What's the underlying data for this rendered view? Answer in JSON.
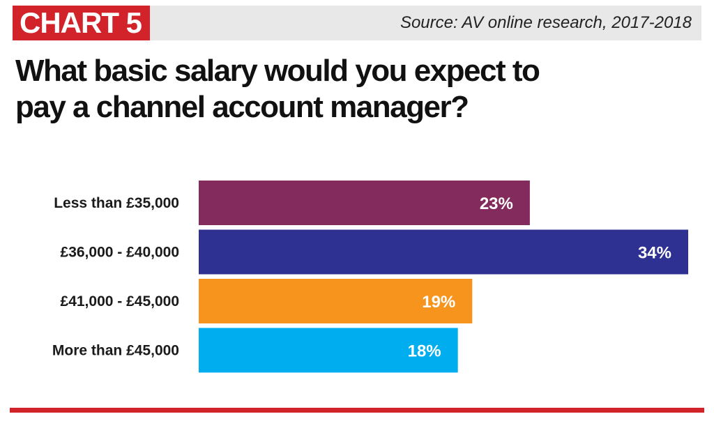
{
  "header": {
    "tag": "CHART 5",
    "source": "Source: AV online research, 2017-2018"
  },
  "title": "What basic salary would you expect to pay a channel account manager?",
  "colors": {
    "brand_red": "#d2232a",
    "header_band": "#e8e8e8"
  },
  "chart_data": {
    "type": "bar",
    "orientation": "horizontal",
    "title": "What basic salary would you expect to pay a channel account manager?",
    "categories": [
      "Less than £35,000",
      "£36,000 - £40,000",
      "£41,000 - £45,000",
      "More than £45,000"
    ],
    "values": [
      23,
      34,
      19,
      18
    ],
    "value_labels": [
      "23%",
      "34%",
      "19%",
      "18%"
    ],
    "bar_colors": [
      "#832b5c",
      "#2e3192",
      "#f7941d",
      "#00aeef"
    ],
    "xlim": [
      0,
      34
    ],
    "xlabel": "",
    "ylabel": "",
    "grid": false,
    "legend": "none"
  }
}
